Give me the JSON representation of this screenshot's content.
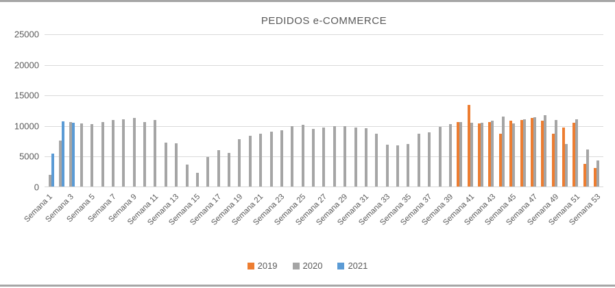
{
  "chart_data": {
    "type": "bar",
    "title": "PEDIDOS e-COMMERCE",
    "categories": [
      "Semana 1",
      "Semana 2",
      "Semana 3",
      "Semana 4",
      "Semana 5",
      "Semana 6",
      "Semana 7",
      "Semana 8",
      "Semana 9",
      "Semana 10",
      "Semana 11",
      "Semana 12",
      "Semana 13",
      "Semana 14",
      "Semana 15",
      "Semana 16",
      "Semana 17",
      "Semana 18",
      "Semana 19",
      "Semana 20",
      "Semana 21",
      "Semana 22",
      "Semana 23",
      "Semana 24",
      "Semana 25",
      "Semana 26",
      "Semana 27",
      "Semana 28",
      "Semana 29",
      "Semana 30",
      "Semana 31",
      "Semana 32",
      "Semana 33",
      "Semana 34",
      "Semana 35",
      "Semana 36",
      "Semana 37",
      "Semana 38",
      "Semana 39",
      "Semana 40",
      "Semana 41",
      "Semana 42",
      "Semana 43",
      "Semana 44",
      "Semana 45",
      "Semana 46",
      "Semana 47",
      "Semana 48",
      "Semana 49",
      "Semana 50",
      "Semana 51",
      "Semana 52",
      "Semana 53"
    ],
    "x_label_every": 2,
    "series": [
      {
        "name": "2019",
        "color": "#ED7D31",
        "values": [
          null,
          null,
          null,
          null,
          null,
          null,
          null,
          null,
          null,
          null,
          null,
          null,
          null,
          null,
          null,
          null,
          null,
          null,
          null,
          null,
          null,
          null,
          null,
          null,
          null,
          null,
          null,
          null,
          null,
          null,
          null,
          null,
          null,
          null,
          null,
          null,
          null,
          null,
          null,
          10600,
          13500,
          10400,
          10600,
          8800,
          10900,
          11000,
          11300,
          10900,
          8800,
          9700,
          10500,
          3800,
          3100
        ]
      },
      {
        "name": "2020",
        "color": "#A5A5A5",
        "values": [
          2000,
          7600,
          10700,
          10400,
          10300,
          10700,
          11000,
          11100,
          11300,
          10600,
          11000,
          7300,
          7200,
          3700,
          2300,
          4900,
          6100,
          5600,
          7800,
          8400,
          8800,
          9100,
          9300,
          10000,
          10200,
          9500,
          9800,
          10000,
          10000,
          9800,
          9600,
          8700,
          7000,
          6800,
          7100,
          8700,
          9000,
          9900,
          10300,
          10700,
          10500,
          10500,
          10900,
          11600,
          10400,
          11100,
          11400,
          11800,
          11000,
          7100,
          11100,
          6200,
          4400
        ]
      },
      {
        "name": "2021",
        "color": "#5B9BD5",
        "values": [
          5500,
          10800,
          10500,
          null,
          null,
          null,
          null,
          null,
          null,
          null,
          null,
          null,
          null,
          null,
          null,
          null,
          null,
          null,
          null,
          null,
          null,
          null,
          null,
          null,
          null,
          null,
          null,
          null,
          null,
          null,
          null,
          null,
          null,
          null,
          null,
          null,
          null,
          null,
          null,
          null,
          null,
          null,
          null,
          null,
          null,
          null,
          null,
          null,
          null,
          null,
          null,
          null,
          null
        ]
      }
    ],
    "y_axis": {
      "ticks": [
        25000,
        20000,
        15000,
        10000,
        5000,
        0
      ],
      "max": 25000
    },
    "legend_position": "bottom",
    "grid": true,
    "colors": {
      "gridline": "#d9d9d9",
      "axis_text": "#595959",
      "frame_border": "#a6a6a6"
    }
  }
}
